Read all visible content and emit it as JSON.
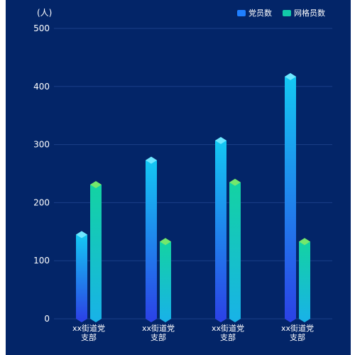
{
  "chart_data": {
    "type": "bar",
    "unit_label": "(人)",
    "categories": [
      [
        "xx街道党",
        "支部"
      ],
      [
        "xx街道党",
        "支部"
      ],
      [
        "xx街道党",
        "支部"
      ],
      [
        "xx街道党",
        "支部"
      ]
    ],
    "series": [
      {
        "name": "党员数",
        "values": [
          145,
          273,
          307,
          417
        ],
        "gradient_top": "#14c8f3",
        "gradient_bottom": "#2b43e6",
        "cap_color": "#6ee7ff",
        "legend_color": "#1f7fff"
      },
      {
        "name": "网格员数",
        "values": [
          231,
          133,
          235,
          133
        ],
        "gradient_top": "#13d3a2",
        "gradient_bottom": "#18b3e6",
        "cap_color": "#74e86c",
        "legend_color": "#12c9a9"
      }
    ],
    "ylim": [
      0,
      500
    ],
    "yticks": [
      0,
      100,
      200,
      300,
      400,
      500
    ],
    "grid": true,
    "legend": "top-right",
    "background": "#032568",
    "grid_color": "#1b3f88"
  }
}
